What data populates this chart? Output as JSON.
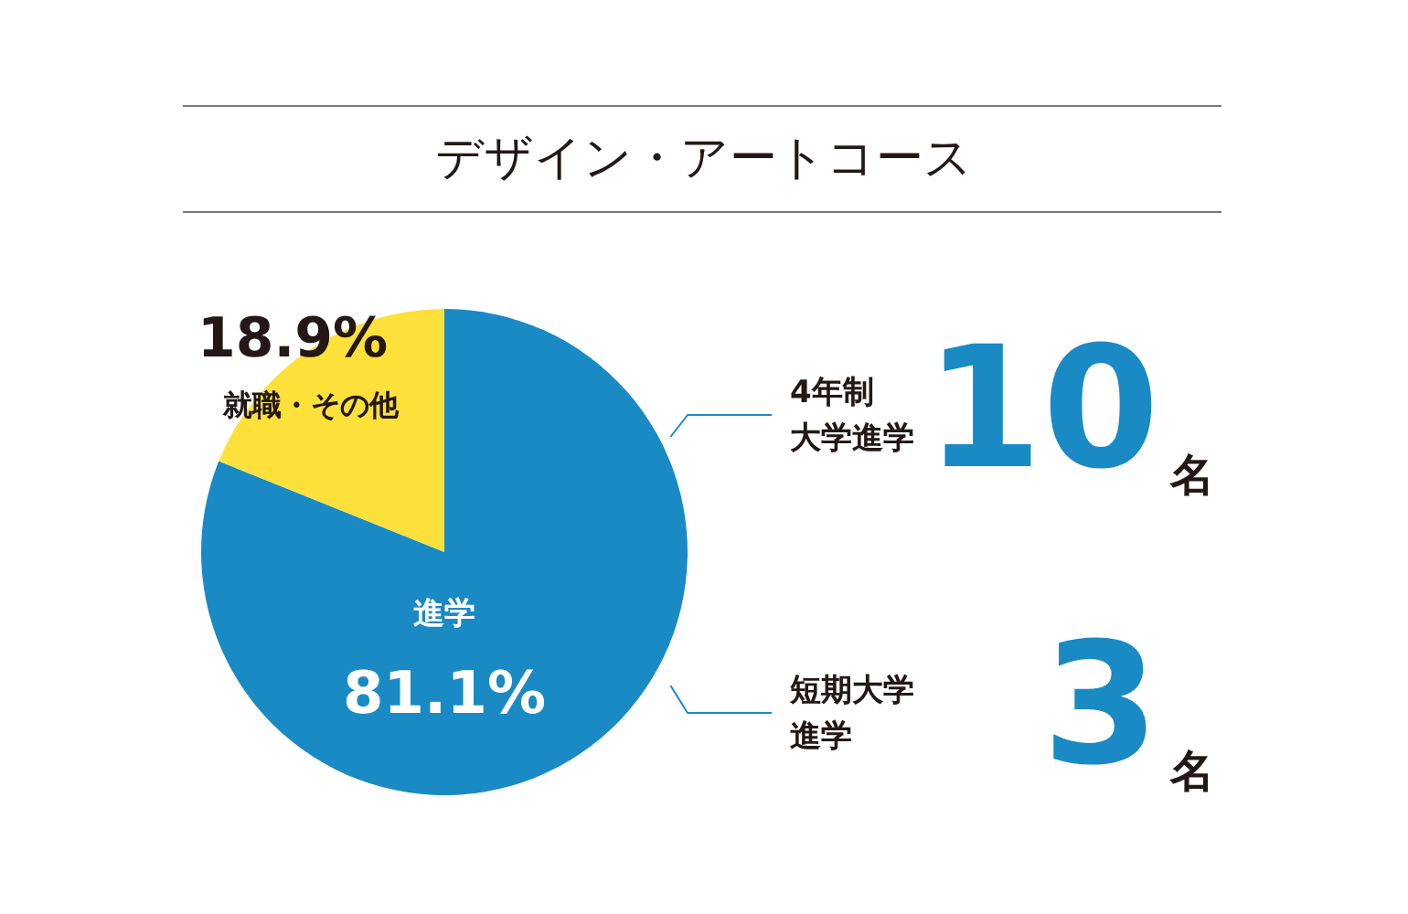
{
  "chart_data": {
    "type": "pie",
    "title": "デザイン・アートコース",
    "categories": [
      "進学",
      "就職・その他"
    ],
    "values": [
      81.1,
      18.9
    ],
    "colors": [
      "#1a8ac4",
      "#fde03a"
    ],
    "value_labels": [
      "81.1%",
      "18.9%"
    ],
    "annotations": [
      "4年制",
      "大学進学",
      "10名",
      "短期大学",
      "進学",
      "3名"
    ]
  }
}
